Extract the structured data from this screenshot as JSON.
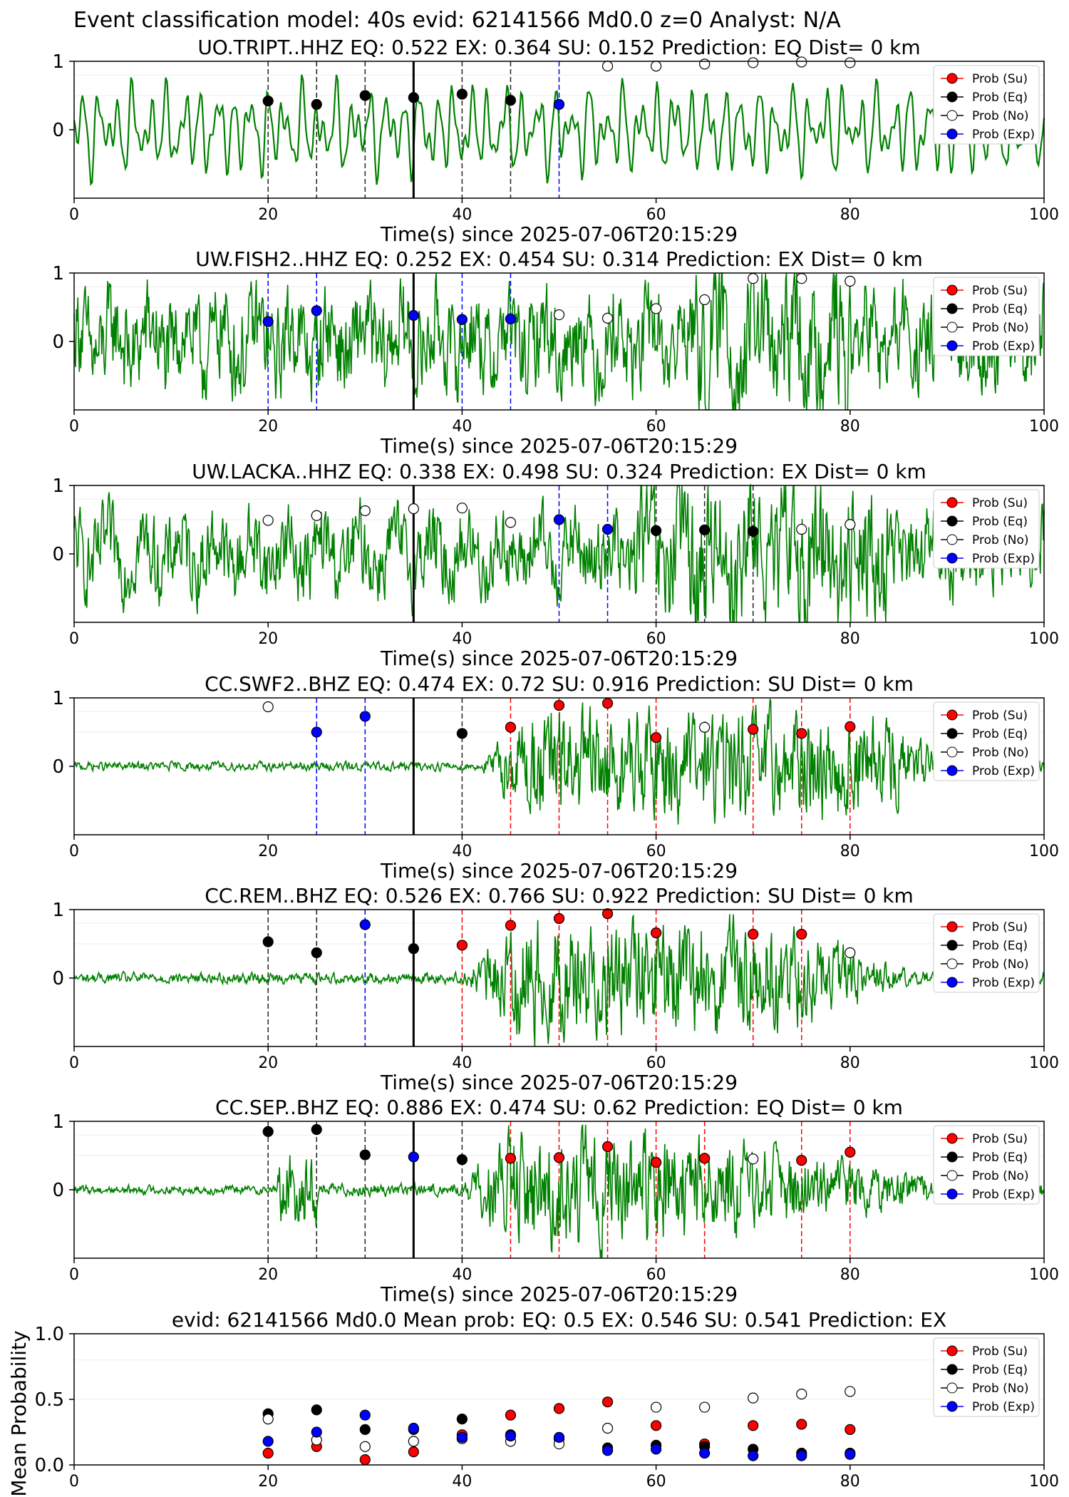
{
  "figure": {
    "suptitle": "Event classification model: 40s evid: 62141566 Md0.0 z=0 Analyst: N/A",
    "colors": {
      "su": "#ff0000",
      "eq": "#000000",
      "no": "#ffffff",
      "exp": "#0000ff",
      "trace": "#008000"
    }
  },
  "chart_data": [
    {
      "type": "line",
      "station": "UO.TRIPT..HHZ",
      "title": "UO.TRIPT..HHZ   EQ: 0.522  EX: 0.364  SU: 0.152   Prediction: EQ    Dist= 0 km",
      "xlabel": "Time(s) since 2025-07-06T20:15:29",
      "xlim": [
        0,
        100
      ],
      "ylim": [
        -1,
        1
      ],
      "xticks": [
        "0",
        "20",
        "40",
        "60",
        "80",
        "100"
      ],
      "yticks": [
        "1",
        "0"
      ],
      "origin_line": 35,
      "windows": [
        {
          "t": 20,
          "p": 0.42,
          "cls": "eq"
        },
        {
          "t": 25,
          "p": 0.37,
          "cls": "eq"
        },
        {
          "t": 30,
          "p": 0.5,
          "cls": "eq"
        },
        {
          "t": 35,
          "p": 0.47,
          "cls": "eq"
        },
        {
          "t": 40,
          "p": 0.52,
          "cls": "eq"
        },
        {
          "t": 45,
          "p": 0.43,
          "cls": "eq"
        },
        {
          "t": 50,
          "p": 0.37,
          "cls": "exp"
        },
        {
          "t": 55,
          "p": 0.93,
          "cls": "no"
        },
        {
          "t": 60,
          "p": 0.93,
          "cls": "no"
        },
        {
          "t": 65,
          "p": 0.96,
          "cls": "no"
        },
        {
          "t": 70,
          "p": 0.98,
          "cls": "no"
        },
        {
          "t": 75,
          "p": 0.99,
          "cls": "no"
        },
        {
          "t": 80,
          "p": 0.98,
          "cls": "no"
        }
      ],
      "legend": [
        "Prob (Su)",
        "Prob (Eq)",
        "Prob (No)",
        "Prob (Exp)"
      ]
    },
    {
      "type": "line",
      "station": "UW.FISH2..HHZ",
      "title": "UW.FISH2..HHZ   EQ: 0.252  EX: 0.454  SU: 0.314   Prediction: EX    Dist= 0 km",
      "xlabel": "Time(s) since 2025-07-06T20:15:29",
      "xlim": [
        0,
        100
      ],
      "ylim": [
        -1,
        1
      ],
      "xticks": [
        "0",
        "20",
        "40",
        "60",
        "80",
        "100"
      ],
      "yticks": [
        "1",
        "0"
      ],
      "origin_line": 35,
      "windows": [
        {
          "t": 20,
          "p": 0.29,
          "cls": "exp"
        },
        {
          "t": 25,
          "p": 0.45,
          "cls": "exp"
        },
        {
          "t": 35,
          "p": 0.38,
          "cls": "exp"
        },
        {
          "t": 40,
          "p": 0.32,
          "cls": "exp"
        },
        {
          "t": 45,
          "p": 0.33,
          "cls": "exp"
        },
        {
          "t": 50,
          "p": 0.39,
          "cls": "no"
        },
        {
          "t": 55,
          "p": 0.34,
          "cls": "no"
        },
        {
          "t": 60,
          "p": 0.48,
          "cls": "no"
        },
        {
          "t": 65,
          "p": 0.61,
          "cls": "no"
        },
        {
          "t": 70,
          "p": 0.92,
          "cls": "no"
        },
        {
          "t": 75,
          "p": 0.92,
          "cls": "no"
        },
        {
          "t": 80,
          "p": 0.88,
          "cls": "no"
        }
      ],
      "legend": [
        "Prob (Su)",
        "Prob (Eq)",
        "Prob (No)",
        "Prob (Exp)"
      ]
    },
    {
      "type": "line",
      "station": "UW.LACKA..HHZ",
      "title": "UW.LACKA..HHZ   EQ: 0.338  EX: 0.498  SU: 0.324   Prediction: EX    Dist= 0 km",
      "xlabel": "Time(s) since 2025-07-06T20:15:29",
      "xlim": [
        0,
        100
      ],
      "ylim": [
        -1,
        1
      ],
      "xticks": [
        "0",
        "20",
        "40",
        "60",
        "80",
        "100"
      ],
      "yticks": [
        "1",
        "0"
      ],
      "origin_line": 35,
      "windows": [
        {
          "t": 20,
          "p": 0.49,
          "cls": "no"
        },
        {
          "t": 25,
          "p": 0.56,
          "cls": "no"
        },
        {
          "t": 30,
          "p": 0.63,
          "cls": "no"
        },
        {
          "t": 35,
          "p": 0.66,
          "cls": "no"
        },
        {
          "t": 40,
          "p": 0.67,
          "cls": "no"
        },
        {
          "t": 45,
          "p": 0.46,
          "cls": "no"
        },
        {
          "t": 50,
          "p": 0.5,
          "cls": "exp"
        },
        {
          "t": 55,
          "p": 0.36,
          "cls": "exp"
        },
        {
          "t": 60,
          "p": 0.34,
          "cls": "eq"
        },
        {
          "t": 65,
          "p": 0.35,
          "cls": "eq"
        },
        {
          "t": 70,
          "p": 0.33,
          "cls": "eq"
        },
        {
          "t": 75,
          "p": 0.36,
          "cls": "no"
        },
        {
          "t": 80,
          "p": 0.43,
          "cls": "no"
        }
      ],
      "legend": [
        "Prob (Su)",
        "Prob (Eq)",
        "Prob (No)",
        "Prob (Exp)"
      ]
    },
    {
      "type": "line",
      "station": "CC.SWF2..BHZ",
      "title": "CC.SWF2..BHZ   EQ: 0.474  EX: 0.72  SU: 0.916   Prediction: SU    Dist= 0 km",
      "xlabel": "Time(s) since 2025-07-06T20:15:29",
      "xlim": [
        0,
        100
      ],
      "ylim": [
        -1,
        1
      ],
      "xticks": [
        "0",
        "20",
        "40",
        "60",
        "80",
        "100"
      ],
      "yticks": [
        "1",
        "0"
      ],
      "origin_line": 35,
      "windows": [
        {
          "t": 20,
          "p": 0.87,
          "cls": "no"
        },
        {
          "t": 25,
          "p": 0.5,
          "cls": "exp"
        },
        {
          "t": 30,
          "p": 0.73,
          "cls": "exp"
        },
        {
          "t": 40,
          "p": 0.48,
          "cls": "eq"
        },
        {
          "t": 45,
          "p": 0.57,
          "cls": "su"
        },
        {
          "t": 50,
          "p": 0.89,
          "cls": "su"
        },
        {
          "t": 55,
          "p": 0.92,
          "cls": "su"
        },
        {
          "t": 60,
          "p": 0.42,
          "cls": "su"
        },
        {
          "t": 65,
          "p": 0.57,
          "cls": "no"
        },
        {
          "t": 70,
          "p": 0.54,
          "cls": "su"
        },
        {
          "t": 75,
          "p": 0.48,
          "cls": "su"
        },
        {
          "t": 80,
          "p": 0.58,
          "cls": "su"
        }
      ],
      "legend": [
        "Prob (Su)",
        "Prob (Eq)",
        "Prob (No)",
        "Prob (Exp)"
      ]
    },
    {
      "type": "line",
      "station": "CC.REM..BHZ",
      "title": "CC.REM..BHZ   EQ: 0.526  EX: 0.766  SU: 0.922   Prediction: SU    Dist= 0 km",
      "xlabel": "Time(s) since 2025-07-06T20:15:29",
      "xlim": [
        0,
        100
      ],
      "ylim": [
        -1,
        1
      ],
      "xticks": [
        "0",
        "20",
        "40",
        "60",
        "80",
        "100"
      ],
      "yticks": [
        "1",
        "0"
      ],
      "origin_line": 35,
      "windows": [
        {
          "t": 20,
          "p": 0.53,
          "cls": "eq"
        },
        {
          "t": 25,
          "p": 0.37,
          "cls": "eq"
        },
        {
          "t": 30,
          "p": 0.78,
          "cls": "exp"
        },
        {
          "t": 35,
          "p": 0.43,
          "cls": "eq"
        },
        {
          "t": 40,
          "p": 0.48,
          "cls": "su"
        },
        {
          "t": 45,
          "p": 0.77,
          "cls": "su"
        },
        {
          "t": 50,
          "p": 0.87,
          "cls": "su"
        },
        {
          "t": 55,
          "p": 0.94,
          "cls": "su"
        },
        {
          "t": 60,
          "p": 0.66,
          "cls": "su"
        },
        {
          "t": 70,
          "p": 0.64,
          "cls": "su"
        },
        {
          "t": 75,
          "p": 0.64,
          "cls": "su"
        },
        {
          "t": 80,
          "p": 0.37,
          "cls": "no"
        }
      ],
      "legend": [
        "Prob (Su)",
        "Prob (Eq)",
        "Prob (No)",
        "Prob (Exp)"
      ]
    },
    {
      "type": "line",
      "station": "CC.SEP..BHZ",
      "title": "CC.SEP..BHZ   EQ: 0.886  EX: 0.474  SU: 0.62   Prediction: EQ    Dist= 0 km",
      "xlabel": "Time(s) since 2025-07-06T20:15:29",
      "xlim": [
        0,
        100
      ],
      "ylim": [
        -1,
        1
      ],
      "xticks": [
        "0",
        "20",
        "40",
        "60",
        "80",
        "100"
      ],
      "yticks": [
        "1",
        "0"
      ],
      "origin_line": 35,
      "windows": [
        {
          "t": 20,
          "p": 0.85,
          "cls": "eq"
        },
        {
          "t": 25,
          "p": 0.88,
          "cls": "eq"
        },
        {
          "t": 30,
          "p": 0.51,
          "cls": "eq"
        },
        {
          "t": 35,
          "p": 0.48,
          "cls": "exp"
        },
        {
          "t": 40,
          "p": 0.44,
          "cls": "eq"
        },
        {
          "t": 45,
          "p": 0.46,
          "cls": "su"
        },
        {
          "t": 50,
          "p": 0.47,
          "cls": "su"
        },
        {
          "t": 55,
          "p": 0.63,
          "cls": "su"
        },
        {
          "t": 60,
          "p": 0.4,
          "cls": "su"
        },
        {
          "t": 65,
          "p": 0.46,
          "cls": "su"
        },
        {
          "t": 70,
          "p": 0.45,
          "cls": "no"
        },
        {
          "t": 75,
          "p": 0.43,
          "cls": "su"
        },
        {
          "t": 80,
          "p": 0.55,
          "cls": "su"
        }
      ],
      "legend": [
        "Prob (Su)",
        "Prob (Eq)",
        "Prob (No)",
        "Prob (Exp)"
      ]
    },
    {
      "type": "scatter",
      "title": "evid: 62141566  Md0.0   Mean prob:   EQ: 0.5  EX: 0.546  SU: 0.541   Prediction: EX",
      "ylabel": "Mean Probability",
      "xlim": [
        0,
        100
      ],
      "ylim": [
        0,
        1
      ],
      "xticks": [
        "0",
        "20",
        "40",
        "60",
        "80",
        "100"
      ],
      "yticks": [
        "1.0",
        "0.5",
        "0.0"
      ],
      "x": [
        20,
        25,
        30,
        35,
        40,
        45,
        50,
        55,
        60,
        65,
        70,
        75,
        80
      ],
      "series": [
        {
          "name": "Prob (Su)",
          "color": "#ff0000",
          "values": [
            0.09,
            0.14,
            0.04,
            0.1,
            0.23,
            0.38,
            0.43,
            0.48,
            0.3,
            0.16,
            0.3,
            0.31,
            0.27
          ]
        },
        {
          "name": "Prob (Eq)",
          "color": "#000000",
          "values": [
            0.39,
            0.42,
            0.27,
            0.27,
            0.35,
            0.23,
            0.2,
            0.13,
            0.15,
            0.14,
            0.12,
            0.09,
            0.09
          ]
        },
        {
          "name": "Prob (No)",
          "color": "#ffffff",
          "values": [
            0.35,
            0.19,
            0.14,
            0.18,
            0.2,
            0.18,
            0.16,
            0.28,
            0.44,
            0.44,
            0.51,
            0.54,
            0.56
          ]
        },
        {
          "name": "Prob (Exp)",
          "color": "#0000ff",
          "values": [
            0.18,
            0.25,
            0.38,
            0.28,
            0.21,
            0.22,
            0.21,
            0.11,
            0.12,
            0.09,
            0.07,
            0.07,
            0.08
          ]
        }
      ],
      "legend": [
        "Prob (Su)",
        "Prob (Eq)",
        "Prob (No)",
        "Prob (Exp)"
      ]
    }
  ]
}
